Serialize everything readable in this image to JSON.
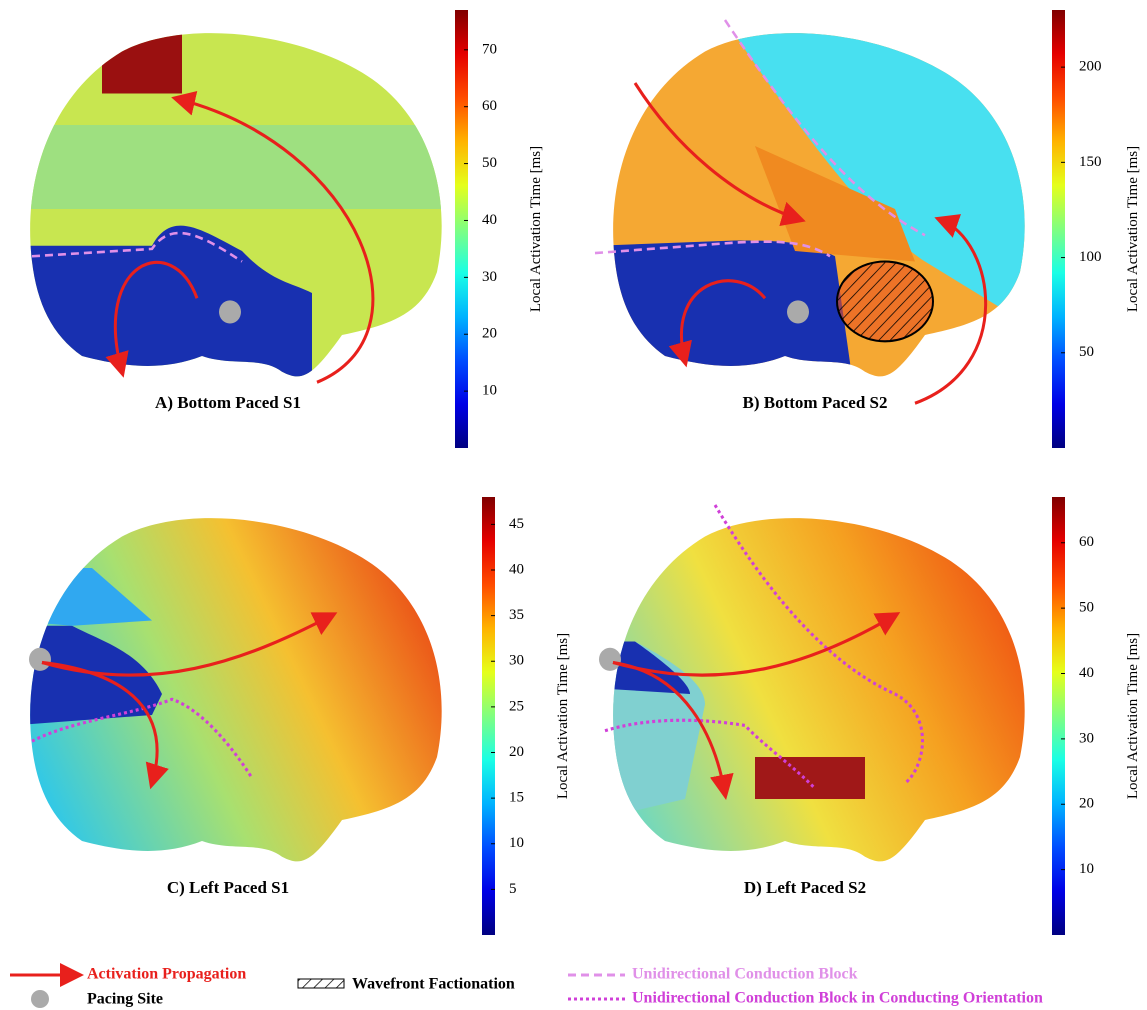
{
  "panels": [
    {
      "caption": "A) Bottom Paced S1",
      "colorbar": {
        "label": "Local Activation Time [ms]",
        "lim": [
          0,
          77
        ],
        "ticks": [
          10,
          20,
          30,
          40,
          50,
          60,
          70
        ]
      }
    },
    {
      "caption": "B) Bottom Paced S2",
      "colorbar": {
        "label": "Local Activation Time [ms]",
        "lim": [
          0,
          230
        ],
        "ticks": [
          50,
          100,
          150,
          200
        ]
      }
    },
    {
      "caption": "C) Left Paced S1",
      "colorbar": {
        "label": "Local Activation Time [ms]",
        "lim": [
          0,
          48
        ],
        "ticks": [
          5,
          10,
          15,
          20,
          25,
          30,
          35,
          40,
          45
        ]
      }
    },
    {
      "caption": "D) Left Paced S2",
      "colorbar": {
        "label": "Local Activation Time [ms]",
        "lim": [
          0,
          67
        ],
        "ticks": [
          10,
          20,
          30,
          40,
          50,
          60
        ]
      }
    }
  ],
  "legend": {
    "propagation": "Activation Propagation",
    "pacing": "Pacing Site",
    "fractionation": "Wavefront Factionation",
    "block": "Unidirectional Conduction Block",
    "block_oriented": "Unidirectional Conduction Block in Conducting Orientation"
  }
}
